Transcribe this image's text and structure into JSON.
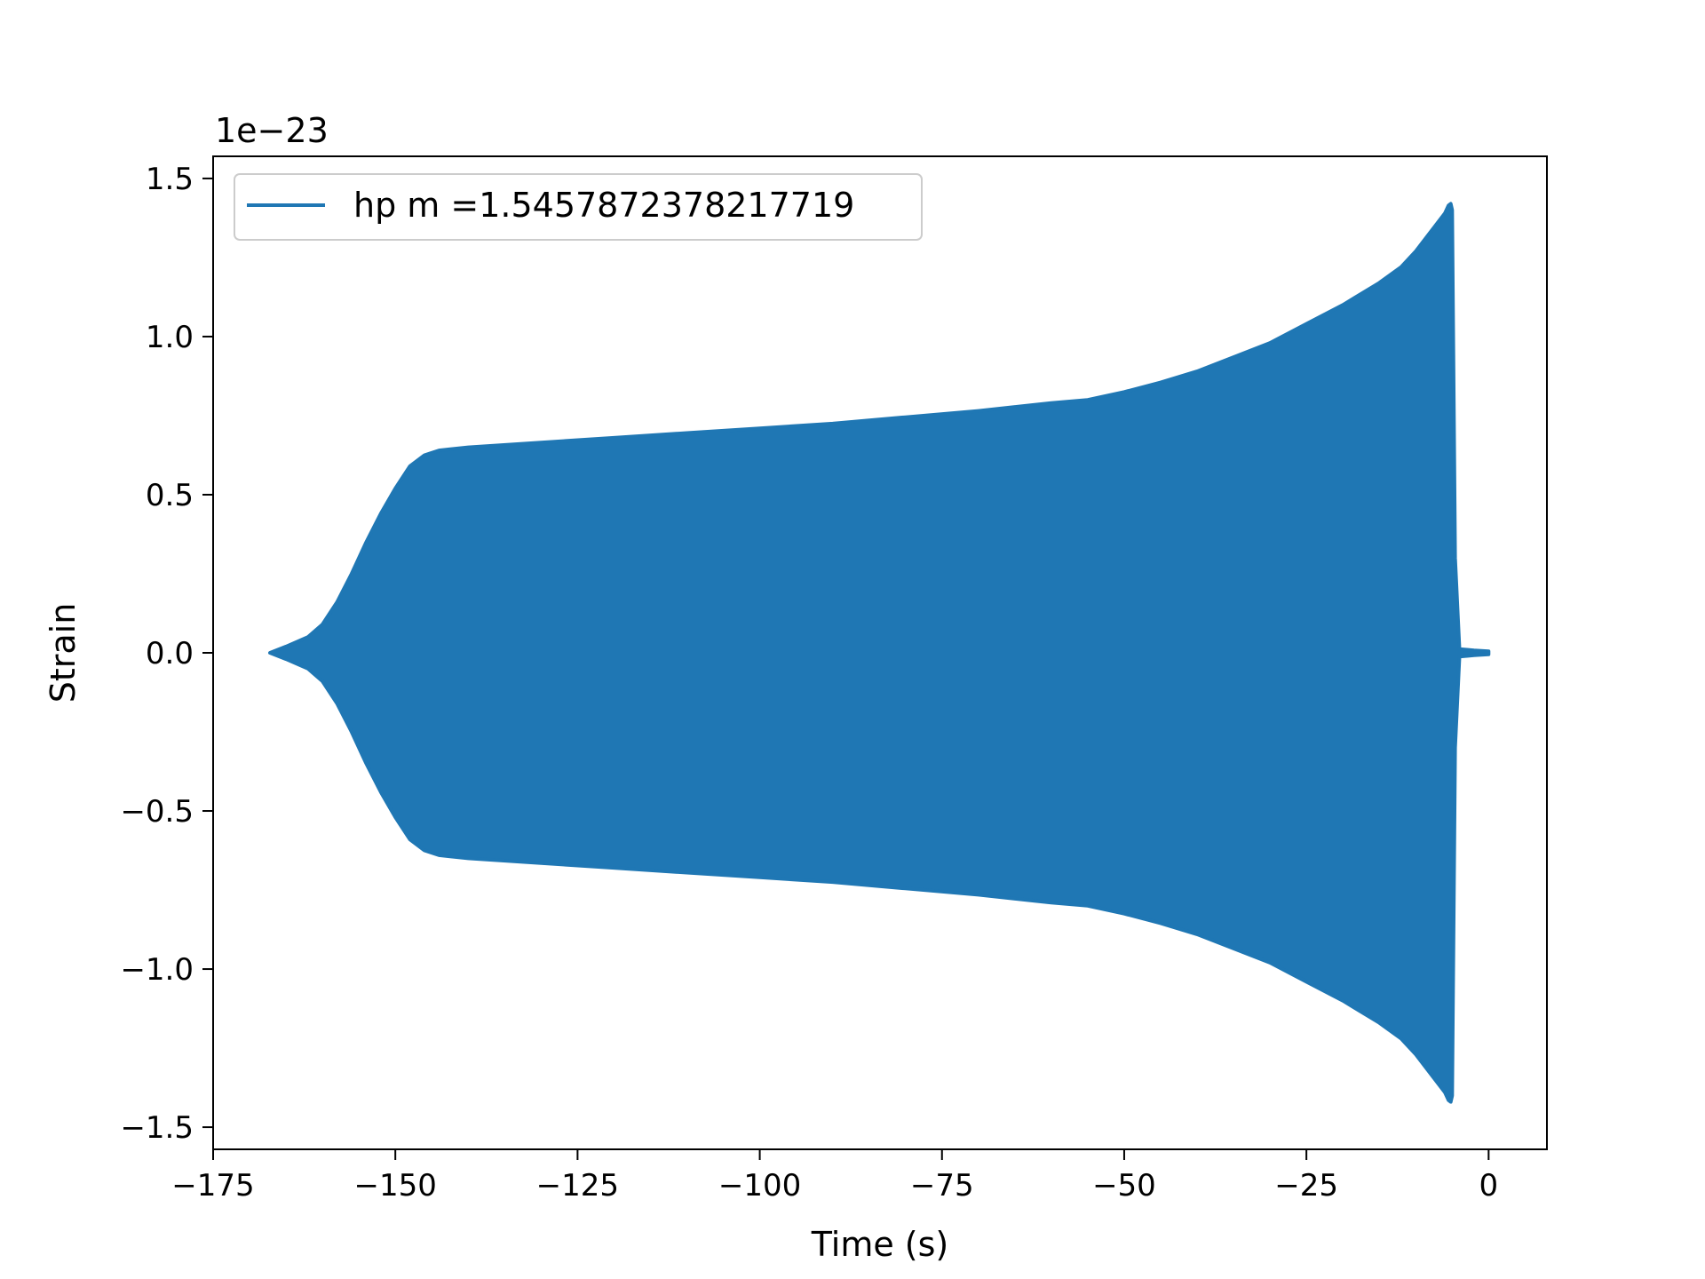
{
  "chart_data": {
    "type": "line",
    "title": "",
    "xlabel": "Time (s)",
    "ylabel": "Strain",
    "xlim": [
      -175,
      8
    ],
    "ylim": [
      -1.57,
      1.57
    ],
    "y_offset_label": "1e−23",
    "xticks": [
      -175,
      -150,
      -125,
      -100,
      -75,
      -50,
      -25,
      0
    ],
    "xtick_labels": [
      "−175",
      "−150",
      "−125",
      "−100",
      "−75",
      "−50",
      "−25",
      "0"
    ],
    "yticks": [
      1.5,
      1.0,
      0.5,
      0.0,
      -0.5,
      -1.0,
      -1.5
    ],
    "ytick_labels": [
      "1.5",
      "1.0",
      "0.5",
      "0.0",
      "−0.5",
      "−1.0",
      "−1.5"
    ],
    "grid": false,
    "legend_position": "top-left",
    "series": [
      {
        "name": "hp m =1.5457872378217719",
        "color": "#1f77b4",
        "envelope": {
          "t": [
            -167.2,
            -165,
            -162,
            -160,
            -158,
            -156,
            -154,
            -152,
            -150,
            -148,
            -146,
            -144,
            -140,
            -130,
            -120,
            -110,
            -100,
            -90,
            -80,
            -70,
            -60,
            -55,
            -50,
            -45,
            -40,
            -35,
            -30,
            -25,
            -20,
            -15,
            -12,
            -10,
            -8,
            -6,
            -5.5,
            -5.2,
            -5.0,
            -4.6,
            -4.0,
            -2.0,
            0.0
          ],
          "amplitude": [
            0.0,
            0.02,
            0.05,
            0.09,
            0.16,
            0.25,
            0.35,
            0.44,
            0.52,
            0.59,
            0.625,
            0.64,
            0.65,
            0.665,
            0.68,
            0.695,
            0.71,
            0.725,
            0.745,
            0.765,
            0.79,
            0.8,
            0.825,
            0.855,
            0.89,
            0.935,
            0.98,
            1.04,
            1.1,
            1.17,
            1.22,
            1.27,
            1.33,
            1.39,
            1.415,
            1.42,
            1.4,
            0.3,
            0.012,
            0.008,
            0.005
          ]
        }
      }
    ]
  }
}
